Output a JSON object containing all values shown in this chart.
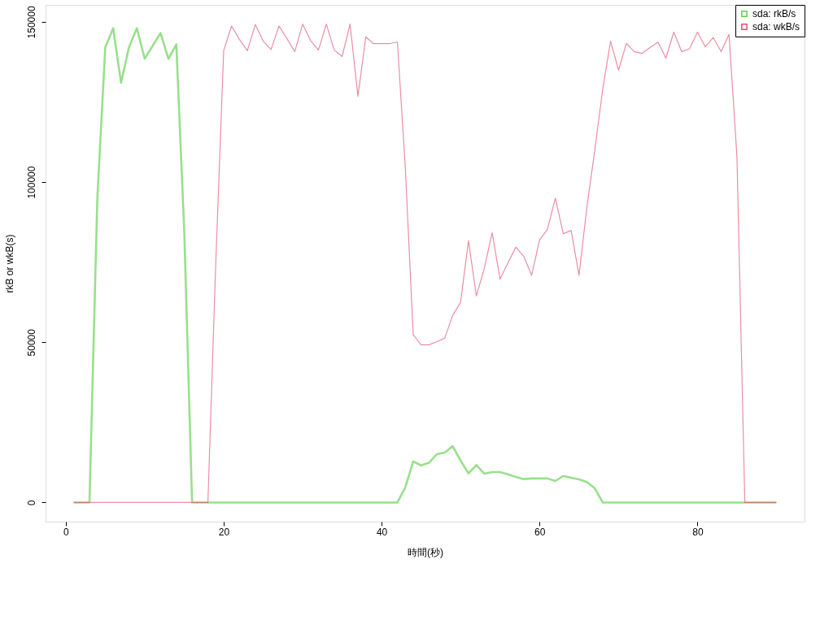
{
  "chart_data": {
    "type": "line",
    "xlabel": "時間(秒)",
    "ylabel": "rkB or wkB(s)",
    "x": [
      1,
      2,
      3,
      4,
      5,
      6,
      7,
      8,
      9,
      10,
      11,
      12,
      13,
      14,
      15,
      16,
      17,
      18,
      19,
      20,
      21,
      22,
      23,
      24,
      25,
      26,
      27,
      28,
      29,
      30,
      31,
      32,
      33,
      34,
      35,
      36,
      37,
      38,
      39,
      40,
      41,
      42,
      43,
      44,
      45,
      46,
      47,
      48,
      49,
      50,
      51,
      52,
      53,
      54,
      55,
      56,
      57,
      58,
      59,
      60,
      61,
      62,
      63,
      64,
      65,
      66,
      67,
      68,
      69,
      70,
      71,
      72,
      73,
      74,
      75,
      76,
      77,
      78,
      79,
      80,
      81,
      82,
      83,
      84,
      85,
      86,
      87,
      88,
      89,
      90
    ],
    "series": [
      {
        "name": "sda: rkB/s",
        "color": "#61d04f",
        "values": [
          0,
          0,
          0,
          95000,
          142000,
          148000,
          131000,
          142000,
          148000,
          138500,
          142500,
          146500,
          138500,
          143000,
          85000,
          0,
          0,
          0,
          0,
          0,
          0,
          0,
          0,
          0,
          0,
          0,
          0,
          0,
          0,
          0,
          0,
          0,
          0,
          0,
          0,
          0,
          0,
          0,
          0,
          0,
          0,
          0,
          4700,
          12800,
          11600,
          12400,
          15100,
          15600,
          17600,
          13100,
          9100,
          11700,
          9000,
          9500,
          9500,
          8800,
          8000,
          7300,
          7500,
          7500,
          7500,
          6700,
          8300,
          7700,
          7200,
          6400,
          4400,
          0,
          0,
          0,
          0,
          0,
          0,
          0,
          0,
          0,
          0,
          0,
          0,
          0,
          0,
          0,
          0,
          0,
          0,
          0,
          0,
          0,
          0,
          0
        ]
      },
      {
        "name": "sda: wkB/s",
        "color": "#df536b",
        "values": [
          0,
          0,
          0,
          0,
          0,
          0,
          0,
          0,
          0,
          0,
          0,
          0,
          0,
          0,
          0,
          0,
          0,
          0,
          75000,
          141000,
          148700,
          144500,
          141000,
          149200,
          144000,
          141400,
          148700,
          144800,
          140700,
          149300,
          144200,
          141200,
          149300,
          141200,
          139200,
          149300,
          126800,
          145300,
          143200,
          143200,
          143200,
          143700,
          104500,
          52400,
          49200,
          49200,
          50200,
          51300,
          58400,
          62400,
          81700,
          64500,
          73000,
          84200,
          69700,
          74800,
          79700,
          76800,
          70900,
          81900,
          85200,
          95000,
          83900,
          84900,
          70900,
          92200,
          110000,
          129000,
          144000,
          134900,
          143300,
          140700,
          140200,
          142000,
          143700,
          138700,
          146800,
          140700,
          141600,
          146800,
          142200,
          145100,
          140700,
          146100,
          108000,
          0,
          0,
          0,
          0,
          0
        ]
      }
    ],
    "xlim": [
      -2.56,
      93.56
    ],
    "xticks": [
      0,
      20,
      40,
      60,
      80
    ],
    "ylim": [
      -5970,
      155300
    ],
    "yticks": [
      0,
      50000,
      100000,
      150000
    ],
    "grid": false,
    "legend": "top right",
    "marker": "none",
    "line_style": "solid"
  }
}
